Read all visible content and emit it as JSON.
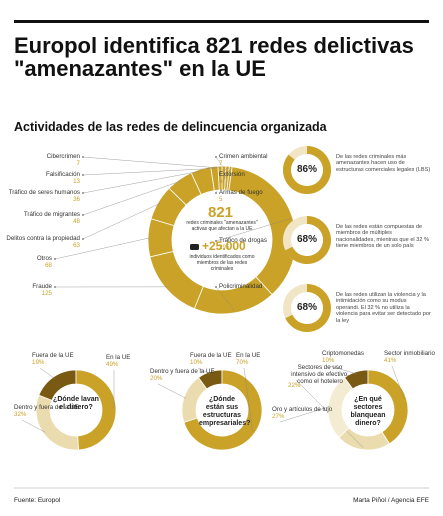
{
  "header": {
    "title": "Europol identifica 821 redes delictivas \"amenazantes\" en la UE",
    "subtitle": "Actividades de las redes de delincuencia organizada"
  },
  "main_chart": {
    "type": "pie",
    "center_number": "821",
    "center_text": "redes criminales \"amenazantes\" activas que afectan a la UE",
    "members_number": "+25.000",
    "members_text": "individuos identificados como miembros de las redes criminales",
    "color": "#c9a227",
    "categories": [
      "Crimen ambiental",
      "Extorsión",
      "Armas de fuego",
      "Tráfico de drogas",
      "Policriminalidad",
      "Fraude",
      "Otros",
      "Delitos contra la propiedad",
      "Tráfico de migrantes",
      "Tráfico de seres humanos",
      "Falsificación",
      "Cibercrimen"
    ],
    "values": [
      7,
      6,
      5,
      295,
      147,
      125,
      68,
      63,
      48,
      36,
      13,
      7
    ]
  },
  "stat_charts": [
    {
      "value": 86,
      "value_label": "86%",
      "text": "De las redes criminales más amenazantes hacen uso de estructuras comerciales legales (LBS)"
    },
    {
      "value": 68,
      "value_label": "68%",
      "text": "De las redes están compuestas de miembros de múltiples nacionalidades, mientras que el 32 % tiene miembros de un solo país"
    },
    {
      "value": 68,
      "value_label": "68%",
      "text": "De las redes utilizan la violencia y la intimidación como su modus operandi. El 32 % no utiliza la violencia para evitar ser detectado por la ley"
    }
  ],
  "bottom_charts": [
    {
      "type": "pie",
      "question": "¿Dónde lavan el dinero?",
      "categories": [
        "Fuera de la UE",
        "En la UE",
        "Dentro y fuera de la UE"
      ],
      "values": [
        19,
        49,
        32
      ],
      "value_labels": [
        "19%",
        "49%",
        "32%"
      ],
      "colors": [
        "#7a5a12",
        "#c9a227",
        "#eadcae"
      ]
    },
    {
      "type": "pie",
      "question": "¿Dónde están sus estructuras empresariales?",
      "categories": [
        "Fuera de la UE",
        "En la UE",
        "Dentro y fuera de la UE"
      ],
      "values": [
        10,
        70,
        20
      ],
      "value_labels": [
        "10%",
        "70%",
        "20%"
      ],
      "colors": [
        "#7a5a12",
        "#c9a227",
        "#eadcae"
      ]
    },
    {
      "type": "pie",
      "question": "¿En qué sectores blanquean dinero?",
      "categories": [
        "Criptomonedas",
        "Sector inmobiliario",
        "Sectores de uso intensivo de efectivo, como el hotelero",
        "Oro y artículos de lujo"
      ],
      "values": [
        10,
        41,
        22,
        27
      ],
      "value_labels": [
        "10%",
        "41%",
        "22%",
        "27%"
      ],
      "colors": [
        "#7a5a12",
        "#c9a227",
        "#eadcae",
        "#f4ecd2"
      ]
    }
  ],
  "footer": {
    "source": "Fuente: Europol",
    "credit": "Marta Piñol / Agencia EFE"
  }
}
